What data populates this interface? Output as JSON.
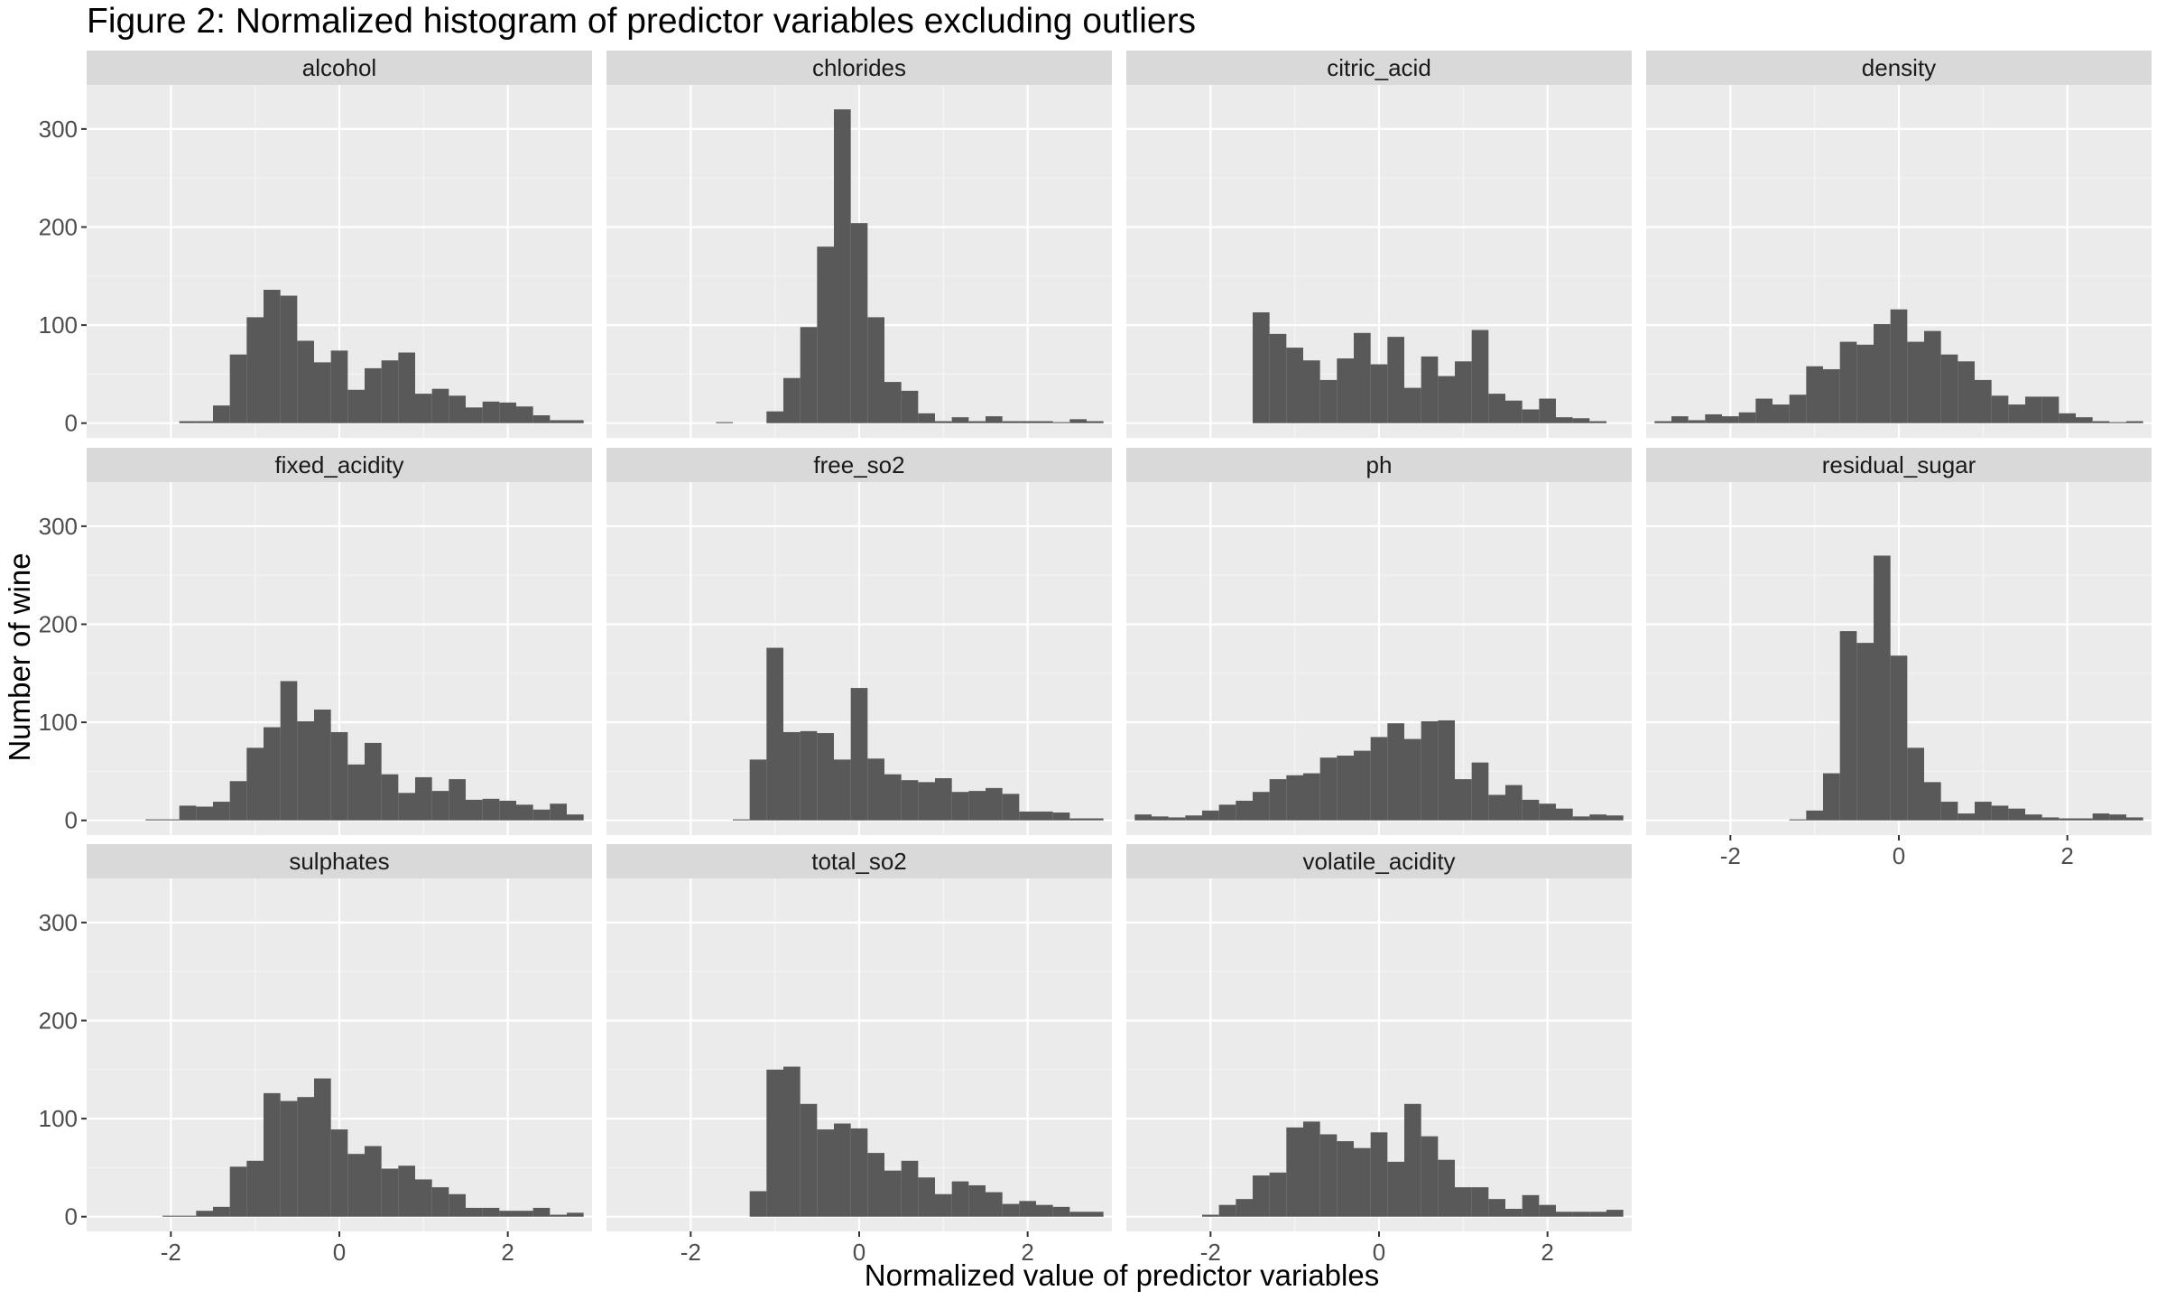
{
  "chart_data": {
    "type": "bar",
    "title": "Figure 2: Normalized histogram of predictor variables excluding outliers",
    "xlabel": "Normalized value of predictor variables",
    "ylabel": "Number of wine",
    "xlim": [
      -3.0,
      3.0
    ],
    "ylim": [
      -15,
      345
    ],
    "x_ticks": [
      -2,
      0,
      2
    ],
    "y_ticks": [
      0,
      100,
      200,
      300
    ],
    "grid": true,
    "bin_width": 0.2,
    "bar_color": "#595959",
    "panel_bg": "#ebebeb",
    "strip_bg": "#d9d9d9",
    "panels": [
      {
        "name": "alcohol",
        "bins": [
          {
            "x": -1.8,
            "y": 2
          },
          {
            "x": -1.6,
            "y": 2
          },
          {
            "x": -1.4,
            "y": 18
          },
          {
            "x": -1.2,
            "y": 70
          },
          {
            "x": -1.0,
            "y": 108
          },
          {
            "x": -0.8,
            "y": 136
          },
          {
            "x": -0.6,
            "y": 130
          },
          {
            "x": -0.4,
            "y": 84
          },
          {
            "x": -0.2,
            "y": 62
          },
          {
            "x": 0.0,
            "y": 74
          },
          {
            "x": 0.2,
            "y": 34
          },
          {
            "x": 0.4,
            "y": 56
          },
          {
            "x": 0.6,
            "y": 64
          },
          {
            "x": 0.8,
            "y": 72
          },
          {
            "x": 1.0,
            "y": 30
          },
          {
            "x": 1.2,
            "y": 35
          },
          {
            "x": 1.4,
            "y": 28
          },
          {
            "x": 1.6,
            "y": 16
          },
          {
            "x": 1.8,
            "y": 22
          },
          {
            "x": 2.0,
            "y": 21
          },
          {
            "x": 2.2,
            "y": 17
          },
          {
            "x": 2.4,
            "y": 8
          },
          {
            "x": 2.6,
            "y": 3
          },
          {
            "x": 2.8,
            "y": 3
          }
        ]
      },
      {
        "name": "chlorides",
        "bins": [
          {
            "x": -1.6,
            "y": 1
          },
          {
            "x": -1.0,
            "y": 12
          },
          {
            "x": -0.8,
            "y": 46
          },
          {
            "x": -0.6,
            "y": 98
          },
          {
            "x": -0.4,
            "y": 180
          },
          {
            "x": -0.2,
            "y": 320
          },
          {
            "x": 0.0,
            "y": 204
          },
          {
            "x": 0.2,
            "y": 108
          },
          {
            "x": 0.4,
            "y": 42
          },
          {
            "x": 0.6,
            "y": 33
          },
          {
            "x": 0.8,
            "y": 10
          },
          {
            "x": 1.0,
            "y": 2
          },
          {
            "x": 1.2,
            "y": 6
          },
          {
            "x": 1.4,
            "y": 2
          },
          {
            "x": 1.6,
            "y": 7
          },
          {
            "x": 1.8,
            "y": 2
          },
          {
            "x": 2.0,
            "y": 2
          },
          {
            "x": 2.2,
            "y": 2
          },
          {
            "x": 2.4,
            "y": 1
          },
          {
            "x": 2.6,
            "y": 4
          },
          {
            "x": 2.8,
            "y": 2
          }
        ]
      },
      {
        "name": "citric_acid",
        "bins": [
          {
            "x": -1.4,
            "y": 113
          },
          {
            "x": -1.2,
            "y": 91
          },
          {
            "x": -1.0,
            "y": 77
          },
          {
            "x": -0.8,
            "y": 64
          },
          {
            "x": -0.6,
            "y": 44
          },
          {
            "x": -0.4,
            "y": 66
          },
          {
            "x": -0.2,
            "y": 92
          },
          {
            "x": 0.0,
            "y": 60
          },
          {
            "x": 0.2,
            "y": 88
          },
          {
            "x": 0.4,
            "y": 36
          },
          {
            "x": 0.6,
            "y": 68
          },
          {
            "x": 0.8,
            "y": 48
          },
          {
            "x": 1.0,
            "y": 63
          },
          {
            "x": 1.2,
            "y": 95
          },
          {
            "x": 1.4,
            "y": 30
          },
          {
            "x": 1.6,
            "y": 23
          },
          {
            "x": 1.8,
            "y": 14
          },
          {
            "x": 2.0,
            "y": 25
          },
          {
            "x": 2.2,
            "y": 6
          },
          {
            "x": 2.4,
            "y": 5
          },
          {
            "x": 2.6,
            "y": 2
          }
        ]
      },
      {
        "name": "density",
        "bins": [
          {
            "x": -2.8,
            "y": 2
          },
          {
            "x": -2.6,
            "y": 7
          },
          {
            "x": -2.4,
            "y": 3
          },
          {
            "x": -2.2,
            "y": 9
          },
          {
            "x": -2.0,
            "y": 7
          },
          {
            "x": -1.8,
            "y": 11
          },
          {
            "x": -1.6,
            "y": 25
          },
          {
            "x": -1.4,
            "y": 19
          },
          {
            "x": -1.2,
            "y": 29
          },
          {
            "x": -1.0,
            "y": 58
          },
          {
            "x": -0.8,
            "y": 55
          },
          {
            "x": -0.6,
            "y": 83
          },
          {
            "x": -0.4,
            "y": 80
          },
          {
            "x": -0.2,
            "y": 101
          },
          {
            "x": 0.0,
            "y": 116
          },
          {
            "x": 0.2,
            "y": 83
          },
          {
            "x": 0.4,
            "y": 94
          },
          {
            "x": 0.6,
            "y": 70
          },
          {
            "x": 0.8,
            "y": 63
          },
          {
            "x": 1.0,
            "y": 44
          },
          {
            "x": 1.2,
            "y": 28
          },
          {
            "x": 1.4,
            "y": 19
          },
          {
            "x": 1.6,
            "y": 27
          },
          {
            "x": 1.8,
            "y": 27
          },
          {
            "x": 2.0,
            "y": 10
          },
          {
            "x": 2.2,
            "y": 6
          },
          {
            "x": 2.4,
            "y": 2
          },
          {
            "x": 2.6,
            "y": 1
          },
          {
            "x": 2.8,
            "y": 2
          }
        ]
      },
      {
        "name": "fixed_acidity",
        "bins": [
          {
            "x": -2.2,
            "y": 1
          },
          {
            "x": -2.0,
            "y": 1
          },
          {
            "x": -1.8,
            "y": 15
          },
          {
            "x": -1.6,
            "y": 14
          },
          {
            "x": -1.4,
            "y": 19
          },
          {
            "x": -1.2,
            "y": 40
          },
          {
            "x": -1.0,
            "y": 74
          },
          {
            "x": -0.8,
            "y": 95
          },
          {
            "x": -0.6,
            "y": 142
          },
          {
            "x": -0.4,
            "y": 101
          },
          {
            "x": -0.2,
            "y": 113
          },
          {
            "x": 0.0,
            "y": 90
          },
          {
            "x": 0.2,
            "y": 57
          },
          {
            "x": 0.4,
            "y": 79
          },
          {
            "x": 0.6,
            "y": 47
          },
          {
            "x": 0.8,
            "y": 28
          },
          {
            "x": 1.0,
            "y": 44
          },
          {
            "x": 1.2,
            "y": 30
          },
          {
            "x": 1.4,
            "y": 42
          },
          {
            "x": 1.6,
            "y": 21
          },
          {
            "x": 1.8,
            "y": 22
          },
          {
            "x": 2.0,
            "y": 20
          },
          {
            "x": 2.2,
            "y": 16
          },
          {
            "x": 2.4,
            "y": 11
          },
          {
            "x": 2.6,
            "y": 17
          },
          {
            "x": 2.8,
            "y": 6
          }
        ]
      },
      {
        "name": "free_so2",
        "bins": [
          {
            "x": -1.4,
            "y": 1
          },
          {
            "x": -1.2,
            "y": 62
          },
          {
            "x": -1.0,
            "y": 176
          },
          {
            "x": -0.8,
            "y": 90
          },
          {
            "x": -0.6,
            "y": 91
          },
          {
            "x": -0.4,
            "y": 89
          },
          {
            "x": -0.2,
            "y": 62
          },
          {
            "x": 0.0,
            "y": 135
          },
          {
            "x": 0.2,
            "y": 63
          },
          {
            "x": 0.4,
            "y": 47
          },
          {
            "x": 0.6,
            "y": 41
          },
          {
            "x": 0.8,
            "y": 39
          },
          {
            "x": 1.0,
            "y": 43
          },
          {
            "x": 1.2,
            "y": 29
          },
          {
            "x": 1.4,
            "y": 30
          },
          {
            "x": 1.6,
            "y": 33
          },
          {
            "x": 1.8,
            "y": 27
          },
          {
            "x": 2.0,
            "y": 9
          },
          {
            "x": 2.2,
            "y": 9
          },
          {
            "x": 2.4,
            "y": 8
          },
          {
            "x": 2.6,
            "y": 2
          },
          {
            "x": 2.8,
            "y": 2
          }
        ]
      },
      {
        "name": "ph",
        "bins": [
          {
            "x": -2.8,
            "y": 6
          },
          {
            "x": -2.6,
            "y": 4
          },
          {
            "x": -2.4,
            "y": 3
          },
          {
            "x": -2.2,
            "y": 5
          },
          {
            "x": -2.0,
            "y": 10
          },
          {
            "x": -1.8,
            "y": 16
          },
          {
            "x": -1.6,
            "y": 20
          },
          {
            "x": -1.4,
            "y": 29
          },
          {
            "x": -1.2,
            "y": 42
          },
          {
            "x": -1.0,
            "y": 46
          },
          {
            "x": -0.8,
            "y": 48
          },
          {
            "x": -0.6,
            "y": 64
          },
          {
            "x": -0.4,
            "y": 66
          },
          {
            "x": -0.2,
            "y": 71
          },
          {
            "x": 0.0,
            "y": 85
          },
          {
            "x": 0.2,
            "y": 99
          },
          {
            "x": 0.4,
            "y": 83
          },
          {
            "x": 0.6,
            "y": 101
          },
          {
            "x": 0.8,
            "y": 102
          },
          {
            "x": 1.0,
            "y": 42
          },
          {
            "x": 1.2,
            "y": 59
          },
          {
            "x": 1.4,
            "y": 26
          },
          {
            "x": 1.6,
            "y": 36
          },
          {
            "x": 1.8,
            "y": 21
          },
          {
            "x": 2.0,
            "y": 17
          },
          {
            "x": 2.2,
            "y": 12
          },
          {
            "x": 2.4,
            "y": 4
          },
          {
            "x": 2.6,
            "y": 6
          },
          {
            "x": 2.8,
            "y": 5
          }
        ]
      },
      {
        "name": "residual_sugar",
        "bins": [
          {
            "x": -1.2,
            "y": 1
          },
          {
            "x": -1.0,
            "y": 10
          },
          {
            "x": -0.8,
            "y": 48
          },
          {
            "x": -0.6,
            "y": 193
          },
          {
            "x": -0.4,
            "y": 181
          },
          {
            "x": -0.2,
            "y": 270
          },
          {
            "x": 0.0,
            "y": 168
          },
          {
            "x": 0.2,
            "y": 74
          },
          {
            "x": 0.4,
            "y": 39
          },
          {
            "x": 0.6,
            "y": 19
          },
          {
            "x": 0.8,
            "y": 7
          },
          {
            "x": 1.0,
            "y": 19
          },
          {
            "x": 1.2,
            "y": 15
          },
          {
            "x": 1.4,
            "y": 12
          },
          {
            "x": 1.6,
            "y": 6
          },
          {
            "x": 1.8,
            "y": 3
          },
          {
            "x": 2.0,
            "y": 2
          },
          {
            "x": 2.2,
            "y": 2
          },
          {
            "x": 2.4,
            "y": 7
          },
          {
            "x": 2.6,
            "y": 6
          },
          {
            "x": 2.8,
            "y": 3
          }
        ]
      },
      {
        "name": "sulphates",
        "bins": [
          {
            "x": -2.0,
            "y": 1
          },
          {
            "x": -1.8,
            "y": 1
          },
          {
            "x": -1.6,
            "y": 6
          },
          {
            "x": -1.4,
            "y": 10
          },
          {
            "x": -1.2,
            "y": 51
          },
          {
            "x": -1.0,
            "y": 57
          },
          {
            "x": -0.8,
            "y": 126
          },
          {
            "x": -0.6,
            "y": 118
          },
          {
            "x": -0.4,
            "y": 122
          },
          {
            "x": -0.2,
            "y": 141
          },
          {
            "x": 0.0,
            "y": 89
          },
          {
            "x": 0.2,
            "y": 64
          },
          {
            "x": 0.4,
            "y": 72
          },
          {
            "x": 0.6,
            "y": 49
          },
          {
            "x": 0.8,
            "y": 52
          },
          {
            "x": 1.0,
            "y": 38
          },
          {
            "x": 1.2,
            "y": 30
          },
          {
            "x": 1.4,
            "y": 23
          },
          {
            "x": 1.6,
            "y": 9
          },
          {
            "x": 1.8,
            "y": 9
          },
          {
            "x": 2.0,
            "y": 6
          },
          {
            "x": 2.2,
            "y": 6
          },
          {
            "x": 2.4,
            "y": 9
          },
          {
            "x": 2.6,
            "y": 2
          },
          {
            "x": 2.8,
            "y": 4
          }
        ]
      },
      {
        "name": "total_so2",
        "bins": [
          {
            "x": -1.2,
            "y": 26
          },
          {
            "x": -1.0,
            "y": 150
          },
          {
            "x": -0.8,
            "y": 153
          },
          {
            "x": -0.6,
            "y": 115
          },
          {
            "x": -0.4,
            "y": 89
          },
          {
            "x": -0.2,
            "y": 95
          },
          {
            "x": 0.0,
            "y": 90
          },
          {
            "x": 0.2,
            "y": 65
          },
          {
            "x": 0.4,
            "y": 47
          },
          {
            "x": 0.6,
            "y": 57
          },
          {
            "x": 0.8,
            "y": 40
          },
          {
            "x": 1.0,
            "y": 23
          },
          {
            "x": 1.2,
            "y": 36
          },
          {
            "x": 1.4,
            "y": 32
          },
          {
            "x": 1.6,
            "y": 25
          },
          {
            "x": 1.8,
            "y": 13
          },
          {
            "x": 2.0,
            "y": 16
          },
          {
            "x": 2.2,
            "y": 12
          },
          {
            "x": 2.4,
            "y": 10
          },
          {
            "x": 2.6,
            "y": 5
          },
          {
            "x": 2.8,
            "y": 5
          }
        ]
      },
      {
        "name": "volatile_acidity",
        "bins": [
          {
            "x": -2.0,
            "y": 2
          },
          {
            "x": -1.8,
            "y": 12
          },
          {
            "x": -1.6,
            "y": 18
          },
          {
            "x": -1.4,
            "y": 42
          },
          {
            "x": -1.2,
            "y": 45
          },
          {
            "x": -1.0,
            "y": 91
          },
          {
            "x": -0.8,
            "y": 97
          },
          {
            "x": -0.6,
            "y": 84
          },
          {
            "x": -0.4,
            "y": 77
          },
          {
            "x": -0.2,
            "y": 70
          },
          {
            "x": 0.0,
            "y": 86
          },
          {
            "x": 0.2,
            "y": 56
          },
          {
            "x": 0.4,
            "y": 115
          },
          {
            "x": 0.6,
            "y": 82
          },
          {
            "x": 0.8,
            "y": 58
          },
          {
            "x": 1.0,
            "y": 30
          },
          {
            "x": 1.2,
            "y": 30
          },
          {
            "x": 1.4,
            "y": 18
          },
          {
            "x": 1.6,
            "y": 8
          },
          {
            "x": 1.8,
            "y": 22
          },
          {
            "x": 2.0,
            "y": 12
          },
          {
            "x": 2.2,
            "y": 5
          },
          {
            "x": 2.4,
            "y": 5
          },
          {
            "x": 2.6,
            "y": 5
          },
          {
            "x": 2.8,
            "y": 7
          }
        ]
      }
    ]
  }
}
